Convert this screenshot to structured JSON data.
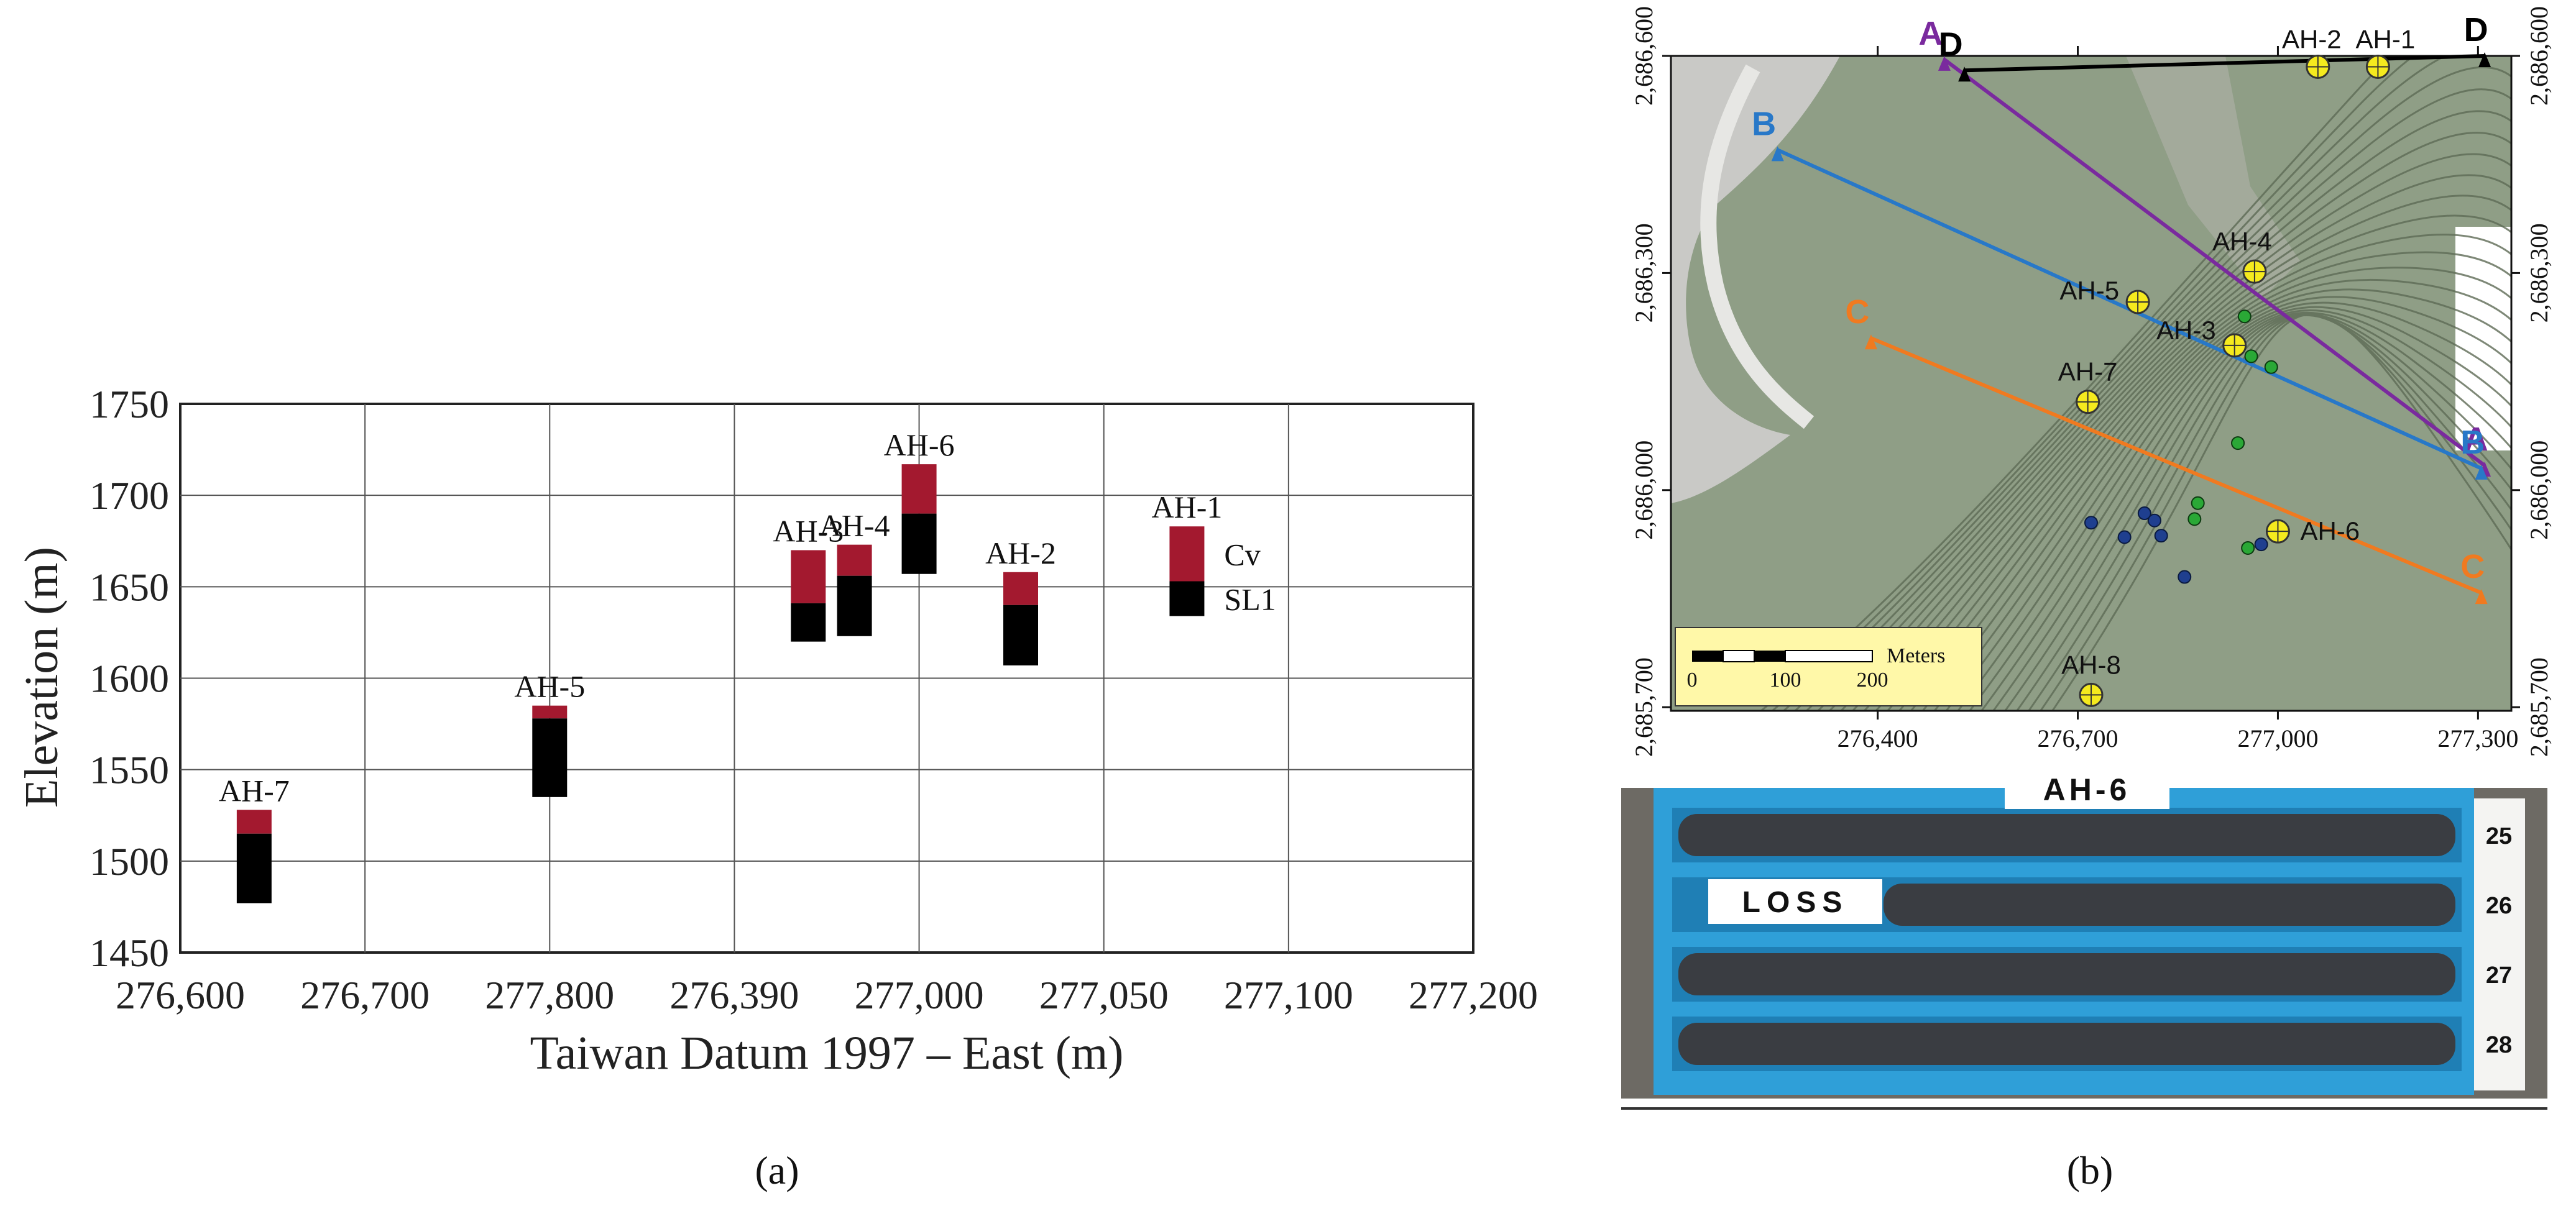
{
  "chart_data": {
    "type": "bar",
    "xlabel": "Taiwan Datum 1997 – East (m)",
    "ylabel": "Elevation (m)",
    "ylim": [
      1450,
      1750
    ],
    "yticks": [
      1450,
      1500,
      1550,
      1600,
      1650,
      1700,
      1750
    ],
    "xtick_labels": [
      "276,600",
      "276,700",
      "277,800",
      "276,390",
      "277,000",
      "277,050",
      "277,100",
      "277,200"
    ],
    "grid": true,
    "boreholes": [
      {
        "name": "AH-7",
        "pos": 0.4,
        "top": 1528,
        "boundary": 1515,
        "bottom": 1477
      },
      {
        "name": "AH-5",
        "pos": 2.0,
        "top": 1585,
        "boundary": 1578,
        "bottom": 1535
      },
      {
        "name": "AH-3",
        "pos": 3.4,
        "top": 1670,
        "boundary": 1641,
        "bottom": 1620
      },
      {
        "name": "AH-4",
        "pos": 3.65,
        "top": 1673,
        "boundary": 1656,
        "bottom": 1623
      },
      {
        "name": "AH-6",
        "pos": 4.0,
        "top": 1717,
        "boundary": 1690,
        "bottom": 1657
      },
      {
        "name": "AH-2",
        "pos": 4.55,
        "top": 1658,
        "boundary": 1640,
        "bottom": 1607
      },
      {
        "name": "AH-1",
        "pos": 5.45,
        "top": 1683,
        "boundary": 1653,
        "bottom": 1634
      }
    ],
    "legend": [
      {
        "name": "Cv",
        "color": "#a3192f"
      },
      {
        "name": "SL1",
        "color": "#000000"
      }
    ]
  },
  "panel_a_label": "(a)",
  "panel_b_label": "(b)",
  "map": {
    "northing_ticks": [
      "2,686,600",
      "2,686,300",
      "2,686,000",
      "2,685,700"
    ],
    "easting_ticks": [
      "276,400",
      "276,700",
      "277,000",
      "277,300"
    ],
    "boreholes": [
      {
        "name": "AH-1",
        "x": 277150,
        "y": 2686585
      },
      {
        "name": "AH-2",
        "x": 277060,
        "y": 2686585
      },
      {
        "name": "AH-4",
        "x": 276965,
        "y": 2686302
      },
      {
        "name": "AH-5",
        "x": 276790,
        "y": 2686260
      },
      {
        "name": "AH-3",
        "x": 276935,
        "y": 2686200
      },
      {
        "name": "AH-7",
        "x": 276715,
        "y": 2686122
      },
      {
        "name": "AH-6",
        "x": 277000,
        "y": 2685943
      },
      {
        "name": "AH-8",
        "x": 276720,
        "y": 2685717
      }
    ],
    "sections": [
      {
        "from": "A",
        "to": "A",
        "color": "#7a2a9e",
        "x1": 276500,
        "y1": 2686595,
        "x2": 277310,
        "y2": 2686034
      },
      {
        "from": "B",
        "to": "B",
        "color": "#2878c8",
        "x1": 276250,
        "y1": 2686470,
        "x2": 277305,
        "y2": 2686030
      },
      {
        "from": "C",
        "to": "C",
        "color": "#f07a20",
        "x1": 276390,
        "y1": 2686210,
        "x2": 277305,
        "y2": 2685858
      },
      {
        "from": "D",
        "to": "D",
        "color": "#000000",
        "x1": 276530,
        "y1": 2686580,
        "x2": 277310,
        "y2": 2686600
      }
    ],
    "scale_bar": {
      "ticks": [
        "0",
        "100",
        "200"
      ],
      "unit": "Meters"
    },
    "colors": {
      "borehole_fill": "#f5ea1e",
      "green_point": "#2aa836",
      "blue_point": "#1f3f8f"
    }
  },
  "core_box": {
    "title": "AH-6",
    "loss_label": "LOSS",
    "row_numbers": [
      "25",
      "26",
      "27",
      "28"
    ],
    "colors": {
      "tray": "#2f9fd8",
      "core": "#3a3d42"
    }
  }
}
